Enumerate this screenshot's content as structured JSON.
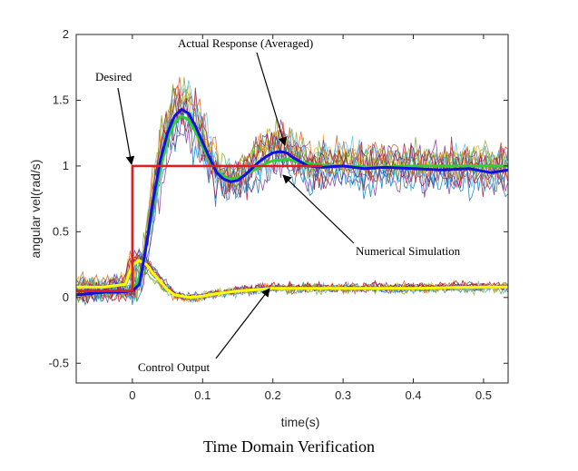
{
  "caption": "Time Domain Verification",
  "chart_data": {
    "type": "line",
    "xlabel": "time(s)",
    "ylabel": "angular vel(rad/s)",
    "xlim": [
      -0.08,
      0.535
    ],
    "ylim": [
      -0.65,
      2.0
    ],
    "x_ticks": [
      0,
      0.1,
      0.2,
      0.3,
      0.4,
      0.5
    ],
    "x_tick_labels": [
      "0",
      "0.1",
      "0.2",
      "0.3",
      "0.4",
      "0.5"
    ],
    "y_ticks": [
      -0.5,
      0,
      0.5,
      1,
      1.5,
      2
    ],
    "y_tick_labels": [
      "-0.5",
      "0",
      "0.5",
      "1",
      "1.5",
      "2"
    ],
    "grid": false,
    "colors": {
      "desired": "#dd1f1f",
      "averaged": "#1010e0",
      "simulation": "#30d030",
      "control_avg": "#ffff00",
      "trials": [
        "#0072bd",
        "#d95319",
        "#edb120",
        "#7e2f8e",
        "#77ac30",
        "#4dbeee",
        "#a2142f"
      ]
    },
    "series": [
      {
        "key": "desired",
        "x": [
          -0.08,
          0.0,
          0.0,
          0.27
        ],
        "y": [
          0.05,
          0.05,
          1.0,
          1.0
        ]
      },
      {
        "key": "averaged",
        "x": [
          -0.08,
          -0.06,
          -0.04,
          -0.02,
          0.0,
          0.01,
          0.02,
          0.03,
          0.04,
          0.05,
          0.06,
          0.07,
          0.08,
          0.09,
          0.1,
          0.11,
          0.12,
          0.13,
          0.14,
          0.15,
          0.16,
          0.17,
          0.18,
          0.19,
          0.2,
          0.21,
          0.22,
          0.23,
          0.25,
          0.27,
          0.3,
          0.33,
          0.36,
          0.4,
          0.44,
          0.48,
          0.51,
          0.535
        ],
        "y": [
          0.02,
          0.03,
          0.04,
          0.04,
          0.05,
          0.1,
          0.4,
          0.75,
          1.05,
          1.25,
          1.38,
          1.43,
          1.4,
          1.3,
          1.18,
          1.06,
          0.95,
          0.9,
          0.88,
          0.89,
          0.93,
          0.98,
          1.03,
          1.07,
          1.1,
          1.11,
          1.1,
          1.06,
          1.0,
          0.99,
          1.0,
          0.98,
          0.99,
          0.98,
          0.97,
          0.98,
          0.95,
          0.97
        ]
      },
      {
        "key": "simulation",
        "x": [
          0.0,
          0.01,
          0.02,
          0.03,
          0.04,
          0.05,
          0.06,
          0.07,
          0.08,
          0.09,
          0.1,
          0.11,
          0.12,
          0.13,
          0.14,
          0.15,
          0.16,
          0.17,
          0.18,
          0.19,
          0.2,
          0.22,
          0.24,
          0.26,
          0.3,
          0.35,
          0.4,
          0.45,
          0.5,
          0.535
        ],
        "y": [
          0.05,
          0.15,
          0.4,
          0.7,
          0.98,
          1.2,
          1.33,
          1.38,
          1.35,
          1.26,
          1.15,
          1.04,
          0.96,
          0.92,
          0.9,
          0.91,
          0.93,
          0.96,
          0.99,
          1.02,
          1.04,
          1.05,
          1.03,
          1.01,
          1.0,
          0.99,
          1.0,
          1.0,
          1.0,
          1.0
        ]
      },
      {
        "key": "control_avg",
        "x": [
          -0.08,
          -0.04,
          -0.01,
          0.0,
          0.01,
          0.02,
          0.03,
          0.04,
          0.05,
          0.06,
          0.08,
          0.1,
          0.12,
          0.15,
          0.2,
          0.25,
          0.3,
          0.4,
          0.5,
          0.535
        ],
        "y": [
          0.08,
          0.08,
          0.1,
          0.25,
          0.28,
          0.25,
          0.18,
          0.12,
          0.06,
          0.02,
          0.0,
          0.01,
          0.03,
          0.05,
          0.07,
          0.07,
          0.07,
          0.07,
          0.08,
          0.08
        ]
      }
    ],
    "annotations": [
      {
        "text": "Actual Response (Averaged)",
        "target": [
          0.21,
          1.1
        ]
      },
      {
        "text": "Desired",
        "target": [
          0.0,
          1.0
        ]
      },
      {
        "text": "Numerical Simulation",
        "target": [
          0.2,
          0.93
        ]
      },
      {
        "text": "Control Output",
        "target": [
          0.18,
          0.1
        ]
      }
    ]
  }
}
